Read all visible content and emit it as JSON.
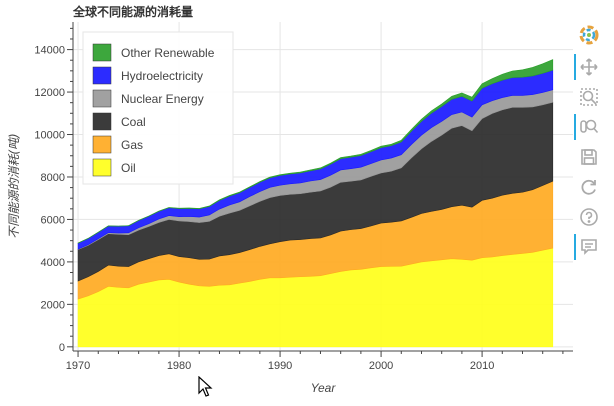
{
  "chart_data": {
    "type": "area",
    "stacked": true,
    "title": "全球不同能源的消耗量",
    "xlabel": "Year",
    "ylabel": "不同能源的消耗(吨)",
    "xlim": [
      1969.5,
      2019
    ],
    "ylim": [
      -150,
      15300
    ],
    "x_ticks": [
      1970,
      1980,
      1990,
      2000,
      2010
    ],
    "y_ticks": [
      0,
      2000,
      4000,
      6000,
      8000,
      10000,
      12000,
      14000
    ],
    "grid": true,
    "legend_position": "top-left",
    "x": [
      1970,
      1971,
      1972,
      1973,
      1974,
      1975,
      1976,
      1977,
      1978,
      1979,
      1980,
      1981,
      1982,
      1983,
      1984,
      1985,
      1986,
      1987,
      1988,
      1989,
      1990,
      1991,
      1992,
      1993,
      1994,
      1995,
      1996,
      1997,
      1998,
      1999,
      2000,
      2001,
      2002,
      2003,
      2004,
      2005,
      2006,
      2007,
      2008,
      2009,
      2010,
      2011,
      2012,
      2013,
      2014,
      2015,
      2016,
      2017
    ],
    "series": [
      {
        "name": "Oil",
        "color": "#ffff1a",
        "values": [
          2250,
          2400,
          2600,
          2850,
          2800,
          2780,
          2950,
          3050,
          3150,
          3180,
          3050,
          2950,
          2870,
          2850,
          2900,
          2920,
          3000,
          3080,
          3180,
          3250,
          3250,
          3280,
          3300,
          3320,
          3350,
          3450,
          3550,
          3620,
          3650,
          3720,
          3780,
          3790,
          3800,
          3900,
          4000,
          4050,
          4100,
          4150,
          4120,
          4080,
          4200,
          4230,
          4300,
          4350,
          4400,
          4450,
          4550,
          4650
        ]
      },
      {
        "name": "Gas",
        "color": "#ffaa22",
        "values": [
          850,
          900,
          950,
          1000,
          1000,
          1000,
          1050,
          1100,
          1150,
          1200,
          1200,
          1250,
          1250,
          1280,
          1380,
          1420,
          1440,
          1500,
          1550,
          1600,
          1700,
          1750,
          1750,
          1780,
          1780,
          1820,
          1900,
          1900,
          1920,
          1970,
          2050,
          2080,
          2130,
          2200,
          2280,
          2330,
          2370,
          2450,
          2550,
          2500,
          2700,
          2770,
          2840,
          2880,
          2880,
          2950,
          3050,
          3150
        ]
      },
      {
        "name": "Coal",
        "color": "#2a2a2a",
        "values": [
          1480,
          1480,
          1500,
          1480,
          1500,
          1500,
          1500,
          1520,
          1560,
          1620,
          1680,
          1700,
          1730,
          1780,
          1870,
          1960,
          1990,
          2060,
          2120,
          2180,
          2180,
          2150,
          2160,
          2180,
          2210,
          2250,
          2300,
          2280,
          2290,
          2340,
          2360,
          2400,
          2500,
          2800,
          3050,
          3300,
          3500,
          3700,
          3750,
          3600,
          3850,
          3990,
          4020,
          4050,
          4000,
          3900,
          3800,
          3720
        ]
      },
      {
        "name": "Nuclear Energy",
        "color": "#999999",
        "values": [
          20,
          30,
          40,
          50,
          60,
          90,
          110,
          130,
          160,
          180,
          200,
          240,
          260,
          300,
          340,
          380,
          400,
          440,
          460,
          480,
          480,
          500,
          510,
          530,
          540,
          560,
          580,
          590,
          600,
          600,
          610,
          620,
          620,
          630,
          640,
          650,
          650,
          640,
          640,
          640,
          650,
          600,
          580,
          560,
          560,
          580,
          580,
          590
        ]
      },
      {
        "name": "Hydroelectricity",
        "color": "#1a1aff",
        "values": [
          280,
          290,
          300,
          310,
          320,
          330,
          340,
          350,
          360,
          370,
          380,
          380,
          390,
          400,
          410,
          420,
          430,
          430,
          440,
          450,
          460,
          460,
          470,
          480,
          500,
          520,
          530,
          540,
          550,
          560,
          580,
          580,
          600,
          620,
          650,
          680,
          700,
          720,
          740,
          760,
          780,
          800,
          820,
          840,
          860,
          880,
          900,
          920
        ]
      },
      {
        "name": "Other Renewable",
        "color": "#2ca02c",
        "values": [
          10,
          10,
          10,
          10,
          10,
          10,
          10,
          10,
          15,
          15,
          20,
          20,
          20,
          25,
          25,
          30,
          30,
          30,
          35,
          35,
          40,
          40,
          45,
          45,
          50,
          50,
          55,
          55,
          60,
          60,
          70,
          70,
          80,
          90,
          100,
          110,
          120,
          140,
          160,
          180,
          210,
          240,
          280,
          310,
          350,
          400,
          450,
          500
        ]
      }
    ]
  },
  "toolbar": {
    "accent": "#26aae1",
    "tools": [
      {
        "name": "bokeh-logo",
        "active": false
      },
      {
        "name": "pan",
        "active": true
      },
      {
        "name": "box-zoom",
        "active": false
      },
      {
        "name": "wheel-zoom",
        "active": true
      },
      {
        "name": "save",
        "active": false
      },
      {
        "name": "reset",
        "active": false
      },
      {
        "name": "help",
        "active": false
      },
      {
        "name": "hover",
        "active": true
      }
    ]
  }
}
